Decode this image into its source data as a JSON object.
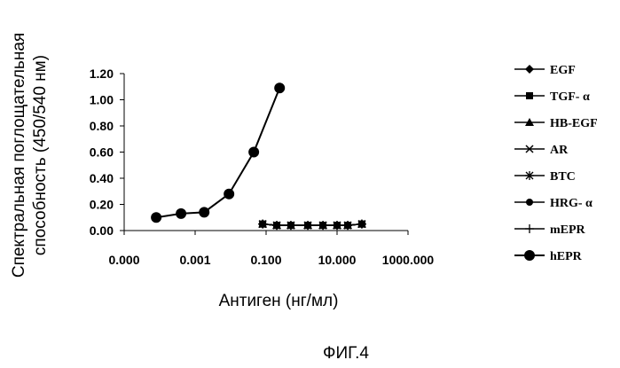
{
  "chart_data": {
    "type": "line",
    "x_scale": "log",
    "ylabel_lines": [
      "Спектральная поглощательная",
      "способность (450/540 нм)"
    ],
    "xlabel": "Антиген (нг/мл)",
    "caption": "ФИГ.4",
    "y_ticks": [
      "1.20",
      "1.00",
      "0.80",
      "0.60",
      "0.40",
      "0.20",
      "0.00"
    ],
    "y_tick_values": [
      1.2,
      1.0,
      0.8,
      0.6,
      0.4,
      0.2,
      0.0
    ],
    "x_ticks": [
      "0.000",
      "0.001",
      "0.100",
      "10.000",
      "1000.000"
    ],
    "x_tick_values": [
      1e-05,
      0.001,
      0.1,
      10,
      1000
    ],
    "xlim": [
      1e-05,
      1000
    ],
    "ylim": [
      0,
      1.2
    ],
    "grid": false,
    "legend_position": "right",
    "series": [
      {
        "name": "EGF",
        "marker": "diamond",
        "x": [
          0.08,
          0.2,
          0.5,
          1.5,
          4,
          10,
          20,
          50
        ],
        "y": [
          0.05,
          0.04,
          0.04,
          0.04,
          0.04,
          0.04,
          0.04,
          0.05
        ]
      },
      {
        "name": "TGF- α",
        "marker": "square",
        "x": [
          0.08,
          0.2,
          0.5,
          1.5,
          4,
          10,
          20,
          50
        ],
        "y": [
          0.05,
          0.04,
          0.04,
          0.04,
          0.04,
          0.04,
          0.04,
          0.05
        ]
      },
      {
        "name": "HB-EGF",
        "marker": "triangle",
        "x": [
          0.08,
          0.2,
          0.5,
          1.5,
          4,
          10,
          20,
          50
        ],
        "y": [
          0.05,
          0.04,
          0.04,
          0.04,
          0.04,
          0.04,
          0.04,
          0.05
        ]
      },
      {
        "name": "AR",
        "marker": "x",
        "x": [
          0.08,
          0.2,
          0.5,
          1.5,
          4,
          10,
          20,
          50
        ],
        "y": [
          0.05,
          0.04,
          0.04,
          0.04,
          0.04,
          0.04,
          0.04,
          0.05
        ]
      },
      {
        "name": "BTC",
        "marker": "star",
        "x": [
          0.08,
          0.2,
          0.5,
          1.5,
          4,
          10,
          20,
          50
        ],
        "y": [
          0.05,
          0.04,
          0.04,
          0.04,
          0.04,
          0.04,
          0.04,
          0.05
        ]
      },
      {
        "name": "HRG- α",
        "marker": "circle-small",
        "x": [
          0.08,
          0.2,
          0.5,
          1.5,
          4,
          10,
          20,
          50
        ],
        "y": [
          0.05,
          0.04,
          0.04,
          0.04,
          0.04,
          0.04,
          0.04,
          0.05
        ]
      },
      {
        "name": "mEPR",
        "marker": "plus",
        "x": [
          0.08,
          0.2,
          0.5,
          1.5,
          4,
          10,
          20,
          50
        ],
        "y": [
          0.05,
          0.04,
          0.04,
          0.04,
          0.04,
          0.04,
          0.04,
          0.05
        ]
      },
      {
        "name": "hEPR",
        "marker": "circle",
        "x": [
          8e-05,
          0.0004,
          0.0018,
          0.009,
          0.045,
          0.24
        ],
        "y": [
          0.1,
          0.13,
          0.14,
          0.28,
          0.6,
          1.09
        ]
      }
    ]
  }
}
